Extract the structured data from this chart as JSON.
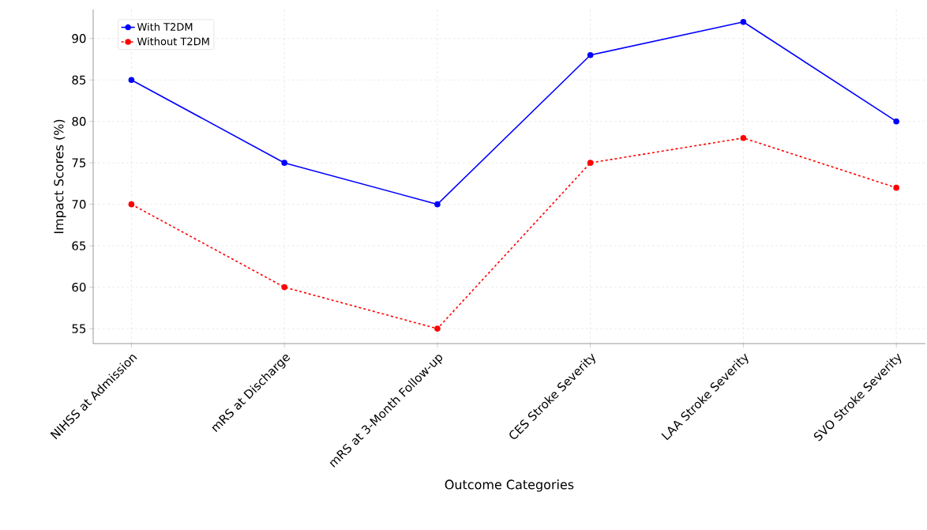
{
  "chart_data": {
    "type": "line",
    "xlabel": "Outcome Categories",
    "ylabel": "Impact Scores (%)",
    "categories": [
      "NIHSS at Admission",
      "mRS at Discharge",
      "mRS at 3-Month Follow-up",
      "CES Stroke Severity",
      "LAA Stroke Severity",
      "SVO Stroke Severity"
    ],
    "series": [
      {
        "name": "With T2DM",
        "color": "#0000ff",
        "values": [
          85,
          75,
          70,
          88,
          92,
          80
        ],
        "line_style": "solid"
      },
      {
        "name": "Without T2DM",
        "color": "#ff0000",
        "values": [
          70,
          60,
          55,
          75,
          78,
          72
        ],
        "line_style": "dashed"
      }
    ],
    "ylim": [
      53.2,
      93.5
    ],
    "yticks": [
      55,
      60,
      65,
      70,
      75,
      80,
      85,
      90
    ],
    "grid": true,
    "legend": "top left",
    "marker": "circle"
  }
}
